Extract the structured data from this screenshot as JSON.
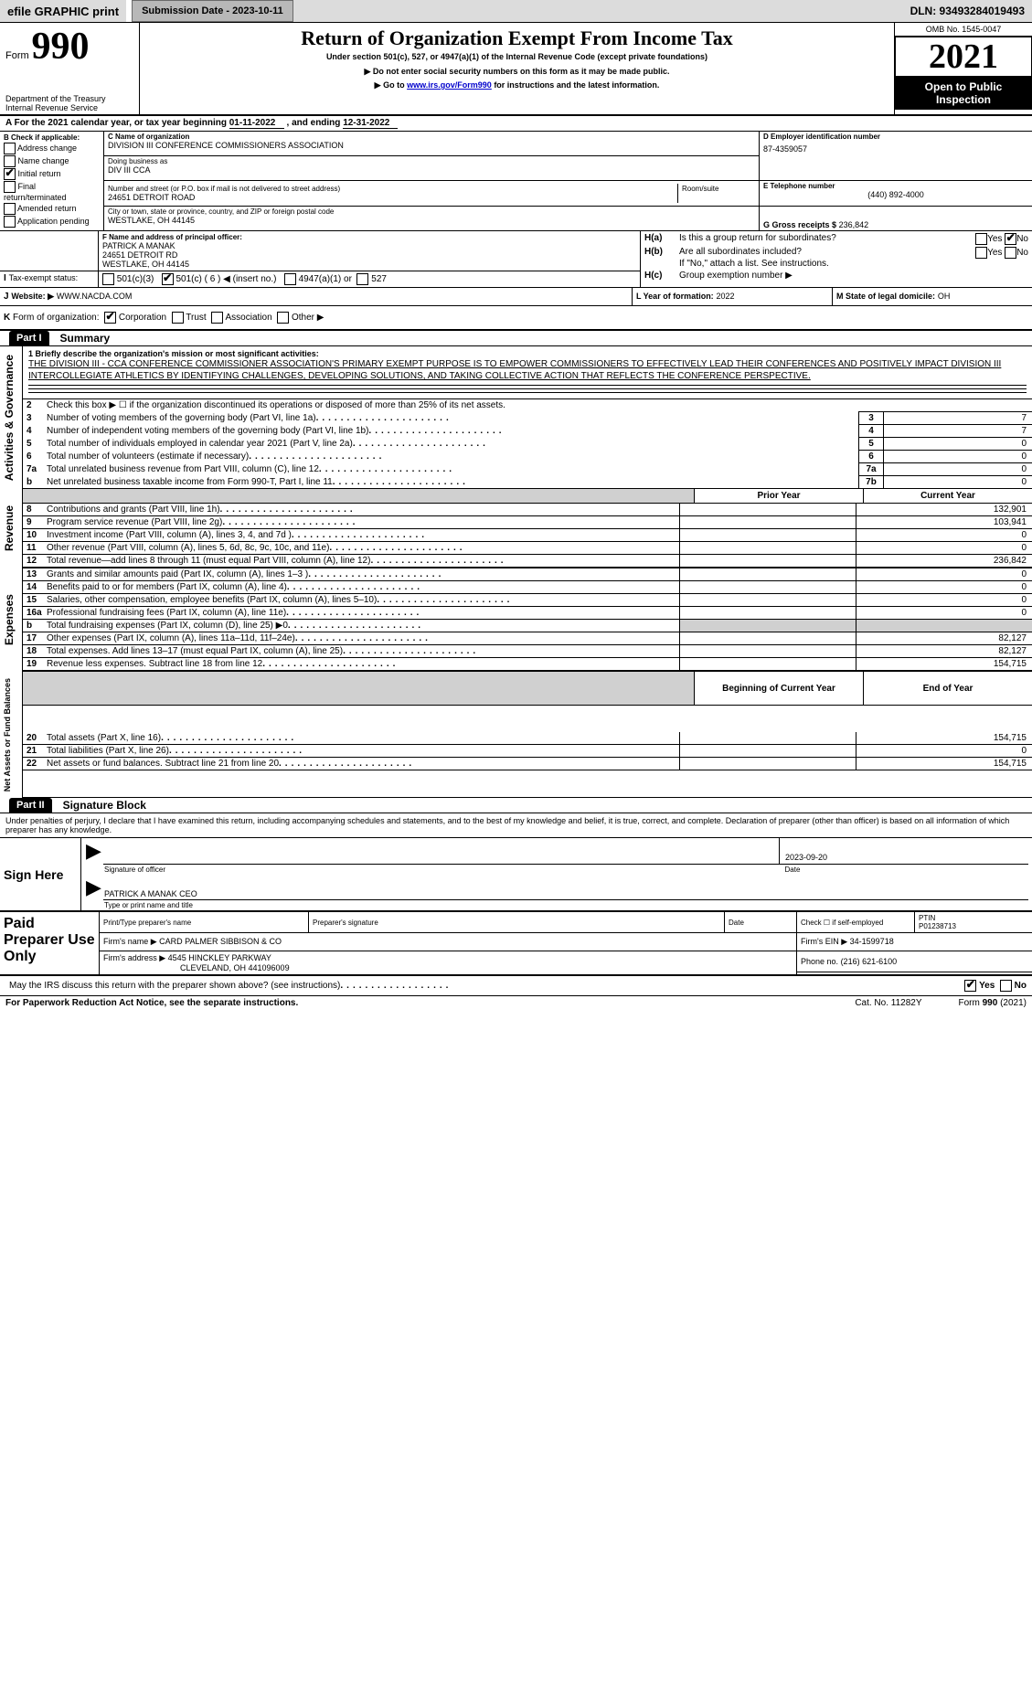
{
  "top": {
    "efile_label": "efile GRAPHIC print",
    "submission_label": "Submission Date - 2023-10-11",
    "dln": "DLN: 93493284019493"
  },
  "header": {
    "form_label": "Form",
    "form_number": "990",
    "dept1": "Department of the Treasury",
    "dept2": "Internal Revenue Service",
    "title": "Return of Organization Exempt From Income Tax",
    "subtitle": "Under section 501(c), 527, or 4947(a)(1) of the Internal Revenue Code (except private foundations)",
    "warn1": "Do not enter social security numbers on this form as it may be made public.",
    "warn2_pre": "Go to ",
    "warn2_link": "www.irs.gov/Form990",
    "warn2_post": " for instructions and the latest information.",
    "omb": "OMB No. 1545-0047",
    "year": "2021",
    "open": "Open to Public Inspection"
  },
  "line_a": {
    "text": "For the 2021 calendar year, or tax year beginning ",
    "begin": "01-11-2022",
    "mid": " , and ending ",
    "end": "12-31-2022"
  },
  "box_b": {
    "heading": "B Check if applicable:",
    "items": [
      {
        "label": "Address change",
        "checked": false
      },
      {
        "label": "Name change",
        "checked": false
      },
      {
        "label": "Initial return",
        "checked": true
      },
      {
        "label": "Final return/terminated",
        "checked": false
      },
      {
        "label": "Amended return",
        "checked": false
      },
      {
        "label": "Application pending",
        "checked": false
      }
    ]
  },
  "box_c": {
    "label": "C Name of organization",
    "name": "DIVISION III CONFERENCE COMMISSIONERS ASSOCIATION",
    "dba_label": "Doing business as",
    "dba": "DIV III CCA",
    "addr_label": "Number and street (or P.O. box if mail is not delivered to street address)",
    "room_label": "Room/suite",
    "street": "24651 DETROIT ROAD",
    "city_label": "City or town, state or province, country, and ZIP or foreign postal code",
    "city": "WESTLAKE, OH  44145"
  },
  "box_d": {
    "label": "D Employer identification number",
    "value": "87-4359057"
  },
  "box_e": {
    "label": "E Telephone number",
    "value": "(440) 892-4000"
  },
  "box_g": {
    "label": "G Gross receipts $",
    "value": "236,842"
  },
  "box_f": {
    "label": "F Name and address of principal officer:",
    "name": "PATRICK A MANAK",
    "street": "24651 DETROIT RD",
    "city": "WESTLAKE, OH  44145"
  },
  "box_h": {
    "a_q": "Is this a group return for subordinates?",
    "a_prefix": "H(a)",
    "b_prefix": "H(b)",
    "c_prefix": "H(c)",
    "b_q": "Are all subordinates included?",
    "b_note": "If \"No,\" attach a list. See instructions.",
    "c_q": "Group exemption number ▶",
    "yes": "Yes",
    "no": "No"
  },
  "box_i": {
    "label": "Tax-exempt status:",
    "c3": "501(c)(3)",
    "c_open": "501(c) ( 6 ) ◀ (insert no.)",
    "a1": "4947(a)(1) or",
    "s527": "527"
  },
  "box_j": {
    "label": "Website: ▶",
    "value": "WWW.NACDA.COM"
  },
  "box_k": {
    "label": "Form of organization:",
    "opts": [
      "Corporation",
      "Trust",
      "Association",
      "Other ▶"
    ],
    "checked_index": 0
  },
  "box_l": {
    "label": "L Year of formation:",
    "value": "2022"
  },
  "box_m": {
    "label": "M State of legal domicile:",
    "value": "OH"
  },
  "part1": {
    "header": "Part I",
    "title": "Summary",
    "line1_label": "1 Briefly describe the organization's mission or most significant activities:",
    "mission": "THE DIVISION III - CCA CONFERENCE COMMISSIONER ASSOCIATION'S PRIMARY EXEMPT PURPOSE IS TO EMPOWER COMMISSIONERS TO EFFECTIVELY LEAD THEIR CONFERENCES AND POSITIVELY IMPACT DIVISION III INTERCOLLEGIATE ATHLETICS BY IDENTIFYING CHALLENGES, DEVELOPING SOLUTIONS, AND TAKING COLLECTIVE ACTION THAT REFLECTS THE CONFERENCE PERSPECTIVE.",
    "line2": "Check this box ▶ ☐ if the organization discontinued its operations or disposed of more than 25% of its net assets.",
    "governance_rows": [
      {
        "n": "3",
        "t": "Number of voting members of the governing body (Part VI, line 1a)",
        "box": "3",
        "v": "7"
      },
      {
        "n": "4",
        "t": "Number of independent voting members of the governing body (Part VI, line 1b)",
        "box": "4",
        "v": "7"
      },
      {
        "n": "5",
        "t": "Total number of individuals employed in calendar year 2021 (Part V, line 2a)",
        "box": "5",
        "v": "0"
      },
      {
        "n": "6",
        "t": "Total number of volunteers (estimate if necessary)",
        "box": "6",
        "v": "0"
      },
      {
        "n": "7a",
        "t": "Total unrelated business revenue from Part VIII, column (C), line 12",
        "box": "7a",
        "v": "0"
      },
      {
        "n": "b",
        "t": "Net unrelated business taxable income from Form 990-T, Part I, line 11",
        "box": "7b",
        "v": "0"
      }
    ],
    "col_prior": "Prior Year",
    "col_current": "Current Year",
    "revenue_rows": [
      {
        "n": "8",
        "t": "Contributions and grants (Part VIII, line 1h)",
        "p": "",
        "c": "132,901"
      },
      {
        "n": "9",
        "t": "Program service revenue (Part VIII, line 2g)",
        "p": "",
        "c": "103,941"
      },
      {
        "n": "10",
        "t": "Investment income (Part VIII, column (A), lines 3, 4, and 7d )",
        "p": "",
        "c": "0"
      },
      {
        "n": "11",
        "t": "Other revenue (Part VIII, column (A), lines 5, 6d, 8c, 9c, 10c, and 11e)",
        "p": "",
        "c": "0"
      },
      {
        "n": "12",
        "t": "Total revenue—add lines 8 through 11 (must equal Part VIII, column (A), line 12)",
        "p": "",
        "c": "236,842"
      }
    ],
    "expense_rows": [
      {
        "n": "13",
        "t": "Grants and similar amounts paid (Part IX, column (A), lines 1–3 )",
        "p": "",
        "c": "0"
      },
      {
        "n": "14",
        "t": "Benefits paid to or for members (Part IX, column (A), line 4)",
        "p": "",
        "c": "0"
      },
      {
        "n": "15",
        "t": "Salaries, other compensation, employee benefits (Part IX, column (A), lines 5–10)",
        "p": "",
        "c": "0"
      },
      {
        "n": "16a",
        "t": "Professional fundraising fees (Part IX, column (A), line 11e)",
        "p": "",
        "c": "0"
      },
      {
        "n": "b",
        "t": "Total fundraising expenses (Part IX, column (D), line 25) ▶0",
        "p": "GRAY",
        "c": "GRAY"
      },
      {
        "n": "17",
        "t": "Other expenses (Part IX, column (A), lines 11a–11d, 11f–24e)",
        "p": "",
        "c": "82,127"
      },
      {
        "n": "18",
        "t": "Total expenses. Add lines 13–17 (must equal Part IX, column (A), line 25)",
        "p": "",
        "c": "82,127"
      },
      {
        "n": "19",
        "t": "Revenue less expenses. Subtract line 18 from line 12",
        "p": "",
        "c": "154,715"
      }
    ],
    "col_begin": "Beginning of Current Year",
    "col_end": "End of Year",
    "net_rows": [
      {
        "n": "20",
        "t": "Total assets (Part X, line 16)",
        "p": "",
        "c": "154,715"
      },
      {
        "n": "21",
        "t": "Total liabilities (Part X, line 26)",
        "p": "",
        "c": "0"
      },
      {
        "n": "22",
        "t": "Net assets or fund balances. Subtract line 21 from line 20",
        "p": "",
        "c": "154,715"
      }
    ],
    "side_labels": {
      "gov": "Activities & Governance",
      "rev": "Revenue",
      "exp": "Expenses",
      "net": "Net Assets or Fund Balances"
    }
  },
  "part2": {
    "header": "Part II",
    "title": "Signature Block",
    "declaration": "Under penalties of perjury, I declare that I have examined this return, including accompanying schedules and statements, and to the best of my knowledge and belief, it is true, correct, and complete. Declaration of preparer (other than officer) is based on all information of which preparer has any knowledge.",
    "sign_here": "Sign Here",
    "sig_officer": "Signature of officer",
    "sig_date": "Date",
    "sig_date_val": "2023-09-20",
    "officer_name": "PATRICK A MANAK  CEO",
    "type_name": "Type or print name and title",
    "paid": "Paid Preparer Use Only",
    "col_print": "Print/Type preparer's name",
    "col_sig": "Preparer's signature",
    "col_date": "Date",
    "col_check": "Check ☐ if self-employed",
    "col_ptin": "PTIN",
    "ptin_val": "P01238713",
    "firm_name_label": "Firm's name    ▶",
    "firm_name": "CARD PALMER SIBBISON & CO",
    "firm_ein_label": "Firm's EIN ▶",
    "firm_ein": "34-1599718",
    "firm_addr_label": "Firm's address ▶",
    "firm_addr1": "4545 HINCKLEY PARKWAY",
    "firm_addr2": "CLEVELAND, OH  441096009",
    "phone_label": "Phone no.",
    "phone": "(216) 621-6100",
    "discuss": "May the IRS discuss this return with the preparer shown above? (see instructions)",
    "yes": "Yes",
    "no": "No"
  },
  "footer": {
    "pra": "For Paperwork Reduction Act Notice, see the separate instructions.",
    "cat": "Cat. No. 11282Y",
    "form": "Form 990 (2021)"
  }
}
